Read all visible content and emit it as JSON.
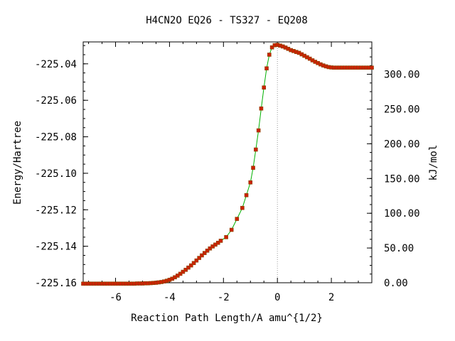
{
  "chart_data": {
    "type": "line",
    "title": "H4CN2O   EQ26 - TS327 - EQ208",
    "xlabel": "Reaction Path Length/A amu^{1/2}",
    "ylabel": "Energy/Hartree",
    "y2label": "kJ/mol",
    "xlim": [
      -7.2,
      3.5
    ],
    "ylim": [
      -225.16,
      -225.028
    ],
    "x_ticks": [
      -6,
      -4,
      -2,
      0,
      2
    ],
    "x_tick_labels": [
      "-6",
      "-4",
      "-2",
      "0",
      "2"
    ],
    "y_ticks": [
      -225.04,
      -225.06,
      -225.08,
      -225.1,
      -225.12,
      -225.14,
      -225.16
    ],
    "y_tick_labels": [
      "-225.04",
      "-225.06",
      "-225.08",
      "-225.10",
      "-225.12",
      "-225.14",
      "-225.16"
    ],
    "y2_ticks": [
      300,
      250,
      200,
      150,
      100,
      50,
      0
    ],
    "y2_tick_labels": [
      "300.00",
      "250.00",
      "200.00",
      "150.00",
      "100.00",
      "50.00",
      "0.00"
    ],
    "kj_per_hartree": 2625.5,
    "grid": false,
    "ts_marker_x": 0,
    "colors": {
      "line": "#00b000",
      "marker": "#cc2200",
      "marker_edge": "#884400",
      "ts_line": "#999999",
      "axis": "#000000"
    },
    "series": [
      {
        "points": [
          [
            -7.2,
            -225.1605
          ],
          [
            -7.1,
            -225.1605
          ],
          [
            -7.0,
            -225.1605
          ],
          [
            -6.9,
            -225.1605
          ],
          [
            -6.8,
            -225.1605
          ],
          [
            -6.7,
            -225.1605
          ],
          [
            -6.6,
            -225.1605
          ],
          [
            -6.5,
            -225.1605
          ],
          [
            -6.4,
            -225.1605
          ],
          [
            -6.3,
            -225.1605
          ],
          [
            -6.2,
            -225.1605
          ],
          [
            -6.1,
            -225.1605
          ],
          [
            -6.0,
            -225.1605
          ],
          [
            -5.9,
            -225.1605
          ],
          [
            -5.8,
            -225.1605
          ],
          [
            -5.7,
            -225.1605
          ],
          [
            -5.6,
            -225.1605
          ],
          [
            -5.5,
            -225.1605
          ],
          [
            -5.4,
            -225.1605
          ],
          [
            -5.3,
            -225.1605
          ],
          [
            -5.2,
            -225.1604
          ],
          [
            -5.1,
            -225.1604
          ],
          [
            -5.0,
            -225.1604
          ],
          [
            -4.9,
            -225.1603
          ],
          [
            -4.8,
            -225.1603
          ],
          [
            -4.7,
            -225.1602
          ],
          [
            -4.6,
            -225.1601
          ],
          [
            -4.5,
            -225.16
          ],
          [
            -4.4,
            -225.1598
          ],
          [
            -4.3,
            -225.1596
          ],
          [
            -4.2,
            -225.1593
          ],
          [
            -4.1,
            -225.1589
          ],
          [
            -4.0,
            -225.1584
          ],
          [
            -3.9,
            -225.1578
          ],
          [
            -3.8,
            -225.157
          ],
          [
            -3.7,
            -225.1561
          ],
          [
            -3.6,
            -225.1551
          ],
          [
            -3.5,
            -225.154
          ],
          [
            -3.4,
            -225.1529
          ],
          [
            -3.3,
            -225.1517
          ],
          [
            -3.2,
            -225.1505
          ],
          [
            -3.1,
            -225.1492
          ],
          [
            -3.0,
            -225.1478
          ],
          [
            -2.9,
            -225.1464
          ],
          [
            -2.8,
            -225.145
          ],
          [
            -2.7,
            -225.1437
          ],
          [
            -2.6,
            -225.1424
          ],
          [
            -2.5,
            -225.1412
          ],
          [
            -2.4,
            -225.1401
          ],
          [
            -2.3,
            -225.1391
          ],
          [
            -2.2,
            -225.1381
          ],
          [
            -2.1,
            -225.137
          ],
          [
            -1.9,
            -225.135
          ],
          [
            -1.7,
            -225.131
          ],
          [
            -1.5,
            -225.125
          ],
          [
            -1.3,
            -225.119
          ],
          [
            -1.15,
            -225.112
          ],
          [
            -1.0,
            -225.105
          ],
          [
            -0.9,
            -225.097
          ],
          [
            -0.8,
            -225.087
          ],
          [
            -0.7,
            -225.0765
          ],
          [
            -0.6,
            -225.0645
          ],
          [
            -0.5,
            -225.053
          ],
          [
            -0.4,
            -225.0425
          ],
          [
            -0.3,
            -225.035
          ],
          [
            -0.2,
            -225.031
          ],
          [
            -0.1,
            -225.0298
          ],
          [
            0.0,
            -225.0296
          ],
          [
            0.1,
            -225.03
          ],
          [
            0.2,
            -225.0305
          ],
          [
            0.3,
            -225.0311
          ],
          [
            0.4,
            -225.0318
          ],
          [
            0.5,
            -225.0325
          ],
          [
            0.6,
            -225.033
          ],
          [
            0.7,
            -225.0335
          ],
          [
            0.8,
            -225.034
          ],
          [
            0.9,
            -225.0348
          ],
          [
            1.0,
            -225.0356
          ],
          [
            1.1,
            -225.0364
          ],
          [
            1.2,
            -225.0372
          ],
          [
            1.3,
            -225.0381
          ],
          [
            1.4,
            -225.0389
          ],
          [
            1.5,
            -225.0396
          ],
          [
            1.6,
            -225.0403
          ],
          [
            1.7,
            -225.0409
          ],
          [
            1.8,
            -225.0414
          ],
          [
            1.9,
            -225.0418
          ],
          [
            2.0,
            -225.042
          ],
          [
            2.1,
            -225.0421
          ],
          [
            2.2,
            -225.0421
          ],
          [
            2.3,
            -225.0421
          ],
          [
            2.4,
            -225.0421
          ],
          [
            2.5,
            -225.0421
          ],
          [
            2.6,
            -225.0421
          ],
          [
            2.7,
            -225.0421
          ],
          [
            2.8,
            -225.0421
          ],
          [
            2.9,
            -225.0421
          ],
          [
            3.0,
            -225.0421
          ],
          [
            3.1,
            -225.0421
          ],
          [
            3.2,
            -225.0421
          ],
          [
            3.3,
            -225.0421
          ],
          [
            3.4,
            -225.0421
          ],
          [
            3.5,
            -225.0421
          ]
        ]
      }
    ]
  }
}
